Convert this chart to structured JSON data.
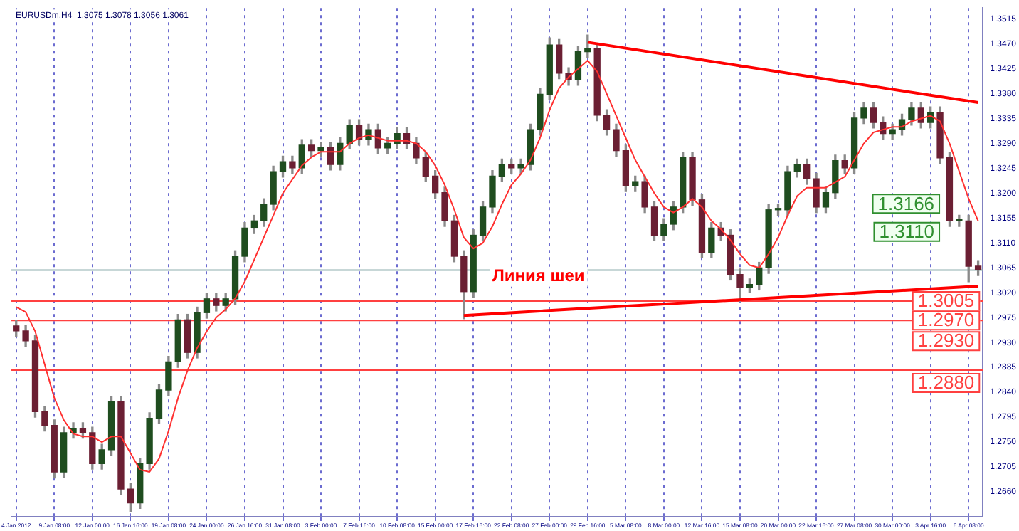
{
  "chart_data": {
    "type": "candlestick",
    "title": "EURUSDm,H4  1.3075 1.3078 1.3056 1.3061",
    "categories": [
      "4 Jan 2012",
      null,
      null,
      null,
      "9 Jan 08:00",
      null,
      null,
      null,
      "12 Jan 00:00",
      null,
      null,
      null,
      "16 Jan 16:00",
      null,
      null,
      null,
      "19 Jan 08:00",
      null,
      null,
      null,
      "24 Jan 00:00",
      null,
      null,
      null,
      "26 Jan 16:00",
      null,
      null,
      null,
      "31 Jan 08:00",
      null,
      null,
      null,
      "3 Feb 00:00",
      null,
      null,
      null,
      "7 Feb 16:00",
      null,
      null,
      null,
      "10 Feb 08:00",
      null,
      null,
      null,
      "15 Feb 00:00",
      null,
      null,
      null,
      "17 Feb 16:00",
      null,
      null,
      null,
      "22 Feb 08:00",
      null,
      null,
      null,
      "27 Feb 00:00",
      null,
      null,
      null,
      "29 Feb 16:00",
      null,
      null,
      null,
      "5 Mar 08:00",
      null,
      null,
      null,
      "8 Mar 00:00",
      null,
      null,
      null,
      "12 Mar 16:00",
      null,
      null,
      null,
      "15 Mar 08:00",
      null,
      null,
      null,
      "20 Mar 00:00",
      null,
      null,
      null,
      "22 Mar 16:00",
      null,
      null,
      null,
      "27 Mar 08:00",
      null,
      null,
      null,
      "30 Mar 00:00",
      null,
      null,
      null,
      "3 Apr 16:00",
      null,
      null,
      null,
      "6 Apr 08:00",
      null
    ],
    "ohlc": [
      [
        1.296,
        1.297,
        1.2941,
        1.2951
      ],
      [
        1.2951,
        1.2961,
        1.2923,
        1.2933
      ],
      [
        1.2933,
        1.2943,
        1.2795,
        1.2805
      ],
      [
        1.2805,
        1.2815,
        1.277,
        1.278
      ],
      [
        1.278,
        1.279,
        1.2685,
        1.2696
      ],
      [
        1.2696,
        1.2777,
        1.2686,
        1.2767
      ],
      [
        1.2767,
        1.2785,
        1.2757,
        1.2775
      ],
      [
        1.2775,
        1.2785,
        1.2757,
        1.2767
      ],
      [
        1.2767,
        1.2777,
        1.2701,
        1.2711
      ],
      [
        1.2711,
        1.2746,
        1.2701,
        1.2736
      ],
      [
        1.2736,
        1.2833,
        1.2726,
        1.2823
      ],
      [
        1.2823,
        1.2833,
        1.2655,
        1.2665
      ],
      [
        1.2665,
        1.2675,
        1.2624,
        1.264
      ],
      [
        1.264,
        1.2721,
        1.263,
        1.2711
      ],
      [
        1.2711,
        1.2803,
        1.2701,
        1.2793
      ],
      [
        1.2793,
        1.2854,
        1.2783,
        1.2844
      ],
      [
        1.2844,
        1.2905,
        1.2834,
        1.2895
      ],
      [
        1.2895,
        1.2981,
        1.2885,
        1.2971
      ],
      [
        1.2971,
        1.2981,
        1.2902,
        1.2912
      ],
      [
        1.2912,
        1.2994,
        1.2902,
        1.2984
      ],
      [
        1.2984,
        1.3019,
        1.2974,
        1.3009
      ],
      [
        1.3009,
        1.3019,
        1.2987,
        1.2997
      ],
      [
        1.2997,
        1.3019,
        1.2987,
        1.3009
      ],
      [
        1.3009,
        1.3096,
        1.2999,
        1.3086
      ],
      [
        1.3086,
        1.3147,
        1.3076,
        1.3137
      ],
      [
        1.3137,
        1.316,
        1.3127,
        1.315
      ],
      [
        1.315,
        1.319,
        1.314,
        1.318
      ],
      [
        1.318,
        1.3249,
        1.317,
        1.3239
      ],
      [
        1.3239,
        1.3267,
        1.3229,
        1.3257
      ],
      [
        1.3257,
        1.3267,
        1.3236,
        1.3246
      ],
      [
        1.3246,
        1.3297,
        1.3236,
        1.3287
      ],
      [
        1.3287,
        1.3297,
        1.3267,
        1.3277
      ],
      [
        1.3277,
        1.3292,
        1.3267,
        1.3282
      ],
      [
        1.3282,
        1.3292,
        1.3242,
        1.3252
      ],
      [
        1.3252,
        1.33,
        1.3242,
        1.329
      ],
      [
        1.329,
        1.3333,
        1.328,
        1.3323
      ],
      [
        1.3323,
        1.3333,
        1.3287,
        1.3297
      ],
      [
        1.3297,
        1.3325,
        1.3287,
        1.3315
      ],
      [
        1.3315,
        1.3325,
        1.3272,
        1.3282
      ],
      [
        1.3282,
        1.33,
        1.3272,
        1.329
      ],
      [
        1.329,
        1.3318,
        1.328,
        1.3308
      ],
      [
        1.3308,
        1.3318,
        1.328,
        1.329
      ],
      [
        1.329,
        1.33,
        1.3254,
        1.3264
      ],
      [
        1.3264,
        1.3274,
        1.3221,
        1.3231
      ],
      [
        1.3231,
        1.3241,
        1.3191,
        1.3201
      ],
      [
        1.3201,
        1.3211,
        1.314,
        1.315
      ],
      [
        1.315,
        1.316,
        1.3076,
        1.3086
      ],
      [
        1.3086,
        1.3096,
        1.2973,
        1.3022
      ],
      [
        1.3022,
        1.3134,
        1.3012,
        1.3124
      ],
      [
        1.3124,
        1.3185,
        1.3114,
        1.3175
      ],
      [
        1.3175,
        1.3241,
        1.3165,
        1.3231
      ],
      [
        1.3231,
        1.3262,
        1.3221,
        1.3252
      ],
      [
        1.3252,
        1.3262,
        1.3236,
        1.3246
      ],
      [
        1.3246,
        1.3262,
        1.3236,
        1.3252
      ],
      [
        1.3252,
        1.3325,
        1.3242,
        1.3315
      ],
      [
        1.3315,
        1.3389,
        1.3305,
        1.3379
      ],
      [
        1.3379,
        1.3481,
        1.3369,
        1.3468
      ],
      [
        1.3468,
        1.3478,
        1.3407,
        1.3417
      ],
      [
        1.3417,
        1.3427,
        1.3395,
        1.3405
      ],
      [
        1.3405,
        1.3466,
        1.3395,
        1.3456
      ],
      [
        1.3456,
        1.3486,
        1.3446,
        1.3461
      ],
      [
        1.3461,
        1.3471,
        1.3331,
        1.3341
      ],
      [
        1.3341,
        1.3351,
        1.3305,
        1.3315
      ],
      [
        1.3315,
        1.3325,
        1.3267,
        1.3277
      ],
      [
        1.3277,
        1.3287,
        1.3203,
        1.3213
      ],
      [
        1.3213,
        1.3231,
        1.3203,
        1.3221
      ],
      [
        1.3221,
        1.3231,
        1.3165,
        1.3175
      ],
      [
        1.3175,
        1.3185,
        1.3114,
        1.3124
      ],
      [
        1.3124,
        1.3154,
        1.3114,
        1.3144
      ],
      [
        1.3144,
        1.3185,
        1.3134,
        1.3175
      ],
      [
        1.3175,
        1.3274,
        1.3165,
        1.3264
      ],
      [
        1.3264,
        1.3274,
        1.3178,
        1.3188
      ],
      [
        1.3188,
        1.3198,
        1.3083,
        1.3093
      ],
      [
        1.3093,
        1.3147,
        1.3083,
        1.3137
      ],
      [
        1.3137,
        1.3147,
        1.3114,
        1.3124
      ],
      [
        1.3124,
        1.3134,
        1.3043,
        1.3053
      ],
      [
        1.3053,
        1.3063,
        1.3004,
        1.303
      ],
      [
        1.303,
        1.3045,
        1.302,
        1.3035
      ],
      [
        1.3035,
        1.3075,
        1.3025,
        1.3065
      ],
      [
        1.3065,
        1.318,
        1.3055,
        1.317
      ],
      [
        1.317,
        1.318,
        1.316,
        1.317
      ],
      [
        1.317,
        1.3249,
        1.316,
        1.3239
      ],
      [
        1.3239,
        1.3262,
        1.3229,
        1.3252
      ],
      [
        1.3252,
        1.3262,
        1.3216,
        1.3226
      ],
      [
        1.3226,
        1.3236,
        1.3165,
        1.3175
      ],
      [
        1.3175,
        1.3211,
        1.3165,
        1.3201
      ],
      [
        1.3201,
        1.3269,
        1.3191,
        1.3259
      ],
      [
        1.3259,
        1.3269,
        1.3236,
        1.3246
      ],
      [
        1.3246,
        1.3346,
        1.3236,
        1.3336
      ],
      [
        1.3336,
        1.3364,
        1.3326,
        1.3354
      ],
      [
        1.3354,
        1.3364,
        1.3318,
        1.3328
      ],
      [
        1.3328,
        1.3338,
        1.3298,
        1.3308
      ],
      [
        1.3308,
        1.3325,
        1.3298,
        1.3315
      ],
      [
        1.3315,
        1.3343,
        1.3305,
        1.3333
      ],
      [
        1.3333,
        1.3364,
        1.3323,
        1.3354
      ],
      [
        1.3354,
        1.3364,
        1.3318,
        1.3328
      ],
      [
        1.3328,
        1.3356,
        1.3318,
        1.3346
      ],
      [
        1.3346,
        1.3356,
        1.3254,
        1.3264
      ],
      [
        1.3264,
        1.3274,
        1.314,
        1.315
      ],
      [
        1.315,
        1.316,
        1.314,
        1.315
      ],
      [
        1.315,
        1.316,
        1.304,
        1.3068
      ],
      [
        1.3068,
        1.3078,
        1.3051,
        1.3061
      ]
    ],
    "series": [
      {
        "type": "line",
        "color": "#ff3030",
        "values": [
          1.2994,
          1.2985,
          1.295,
          1.289,
          1.283,
          1.279,
          1.2765,
          1.276,
          1.276,
          1.275,
          1.276,
          1.276,
          1.273,
          1.27,
          1.2696,
          1.272,
          1.277,
          1.283,
          1.288,
          1.292,
          1.295,
          1.2975,
          1.299,
          1.301,
          1.304,
          1.308,
          1.312,
          1.316,
          1.32,
          1.3225,
          1.325,
          1.3265,
          1.3275,
          1.3275,
          1.3275,
          1.329,
          1.33,
          1.3305,
          1.33,
          1.3295,
          1.3295,
          1.3295,
          1.329,
          1.3275,
          1.325,
          1.3215,
          1.317,
          1.312,
          1.31,
          1.311,
          1.314,
          1.318,
          1.3215,
          1.3235,
          1.326,
          1.33,
          1.335,
          1.339,
          1.341,
          1.3425,
          1.344,
          1.342,
          1.338,
          1.334,
          1.33,
          1.326,
          1.323,
          1.32,
          1.3175,
          1.3165,
          1.3175,
          1.319,
          1.3175,
          1.315,
          1.3135,
          1.3115,
          1.309,
          1.307,
          1.3065,
          1.309,
          1.312,
          1.316,
          1.3195,
          1.321,
          1.321,
          1.321,
          1.322,
          1.323,
          1.326,
          1.329,
          1.331,
          1.3315,
          1.332,
          1.332,
          1.333,
          1.3335,
          1.334,
          1.333,
          1.329,
          1.324,
          1.319,
          1.315
        ]
      },
      {
        "type": "line",
        "color": "#ff0000",
        "values": [
          null,
          null,
          null,
          null,
          null,
          null,
          null,
          null,
          null,
          null,
          null,
          null,
          null,
          null,
          null,
          null,
          null,
          null,
          null,
          null,
          null,
          null,
          null,
          null,
          null,
          null,
          null,
          null,
          null,
          null,
          null,
          null,
          null,
          null,
          null,
          null,
          null,
          null,
          null,
          null,
          null,
          null,
          null,
          null,
          null,
          null,
          null,
          null,
          null,
          null,
          null,
          null,
          null,
          null,
          null,
          null,
          null,
          null,
          null,
          null,
          1.3473,
          null,
          null,
          null,
          null,
          null,
          null,
          null,
          null,
          null,
          null,
          null,
          null,
          null,
          null,
          null,
          null,
          null,
          null,
          null,
          null,
          null,
          null,
          null,
          null,
          null,
          null,
          null,
          null,
          null,
          null,
          null,
          null,
          null,
          null,
          null,
          null,
          null,
          null,
          null,
          null,
          1.3364
        ]
      },
      {
        "type": "line",
        "color": "#ff0000",
        "values": [
          null,
          null,
          null,
          null,
          null,
          null,
          null,
          null,
          null,
          null,
          null,
          null,
          null,
          null,
          null,
          null,
          null,
          null,
          null,
          null,
          null,
          null,
          null,
          null,
          null,
          null,
          null,
          null,
          null,
          null,
          null,
          null,
          null,
          null,
          null,
          null,
          null,
          null,
          null,
          null,
          null,
          null,
          null,
          null,
          null,
          null,
          null,
          1.2979,
          null,
          null,
          null,
          null,
          null,
          null,
          null,
          null,
          null,
          null,
          null,
          null,
          null,
          null,
          null,
          null,
          null,
          null,
          null,
          null,
          null,
          null,
          null,
          null,
          null,
          null,
          null,
          null,
          null,
          null,
          null,
          null,
          null,
          null,
          null,
          null,
          null,
          null,
          null,
          null,
          null,
          null,
          null,
          null,
          null,
          null,
          null,
          null,
          null,
          null,
          null,
          null,
          null,
          1.3032
        ]
      }
    ],
    "ref_lines": [
      {
        "axis": "y",
        "value": 1.3061,
        "label": null,
        "color": "#8fb0b0"
      },
      {
        "axis": "y",
        "value": 1.3005,
        "label": "1.3005",
        "color": "#ff4040"
      },
      {
        "axis": "y",
        "value": 1.297,
        "label": "1.2970",
        "color": "#ff4040"
      },
      {
        "axis": "y",
        "value": 1.288,
        "label": "1.2880",
        "color": "#ff4040"
      }
    ],
    "annotations": [
      "Линия шеи",
      "1.3166",
      "1.3110",
      "1.2930"
    ],
    "ylim": [
      1.2615,
      1.3535
    ],
    "yticks": [
      {
        "value": 1.3515,
        "label": "1.3515"
      },
      {
        "value": 1.347,
        "label": "1.3470"
      },
      {
        "value": 1.3425,
        "label": "1.3425"
      },
      {
        "value": 1.338,
        "label": "1.3380"
      },
      {
        "value": 1.3335,
        "label": "1.3335"
      },
      {
        "value": 1.329,
        "label": "1.3290"
      },
      {
        "value": 1.3245,
        "label": "1.3245"
      },
      {
        "value": 1.32,
        "label": "1.3200"
      },
      {
        "value": 1.3155,
        "label": "1.3155"
      },
      {
        "value": 1.311,
        "label": "1.3110"
      },
      {
        "value": 1.3065,
        "label": "1.3065"
      },
      {
        "value": 1.302,
        "label": "1.3020"
      },
      {
        "value": 1.2975,
        "label": "1.2975"
      },
      {
        "value": 1.293,
        "label": "1.2930"
      },
      {
        "value": 1.2885,
        "label": "1.2885"
      },
      {
        "value": 1.284,
        "label": "1.2840"
      },
      {
        "value": 1.2795,
        "label": "1.2795"
      },
      {
        "value": 1.275,
        "label": "1.2750"
      },
      {
        "value": 1.2705,
        "label": "1.2705"
      },
      {
        "value": 1.266,
        "label": "1.2660"
      }
    ],
    "grid": "x",
    "legend": false
  }
}
